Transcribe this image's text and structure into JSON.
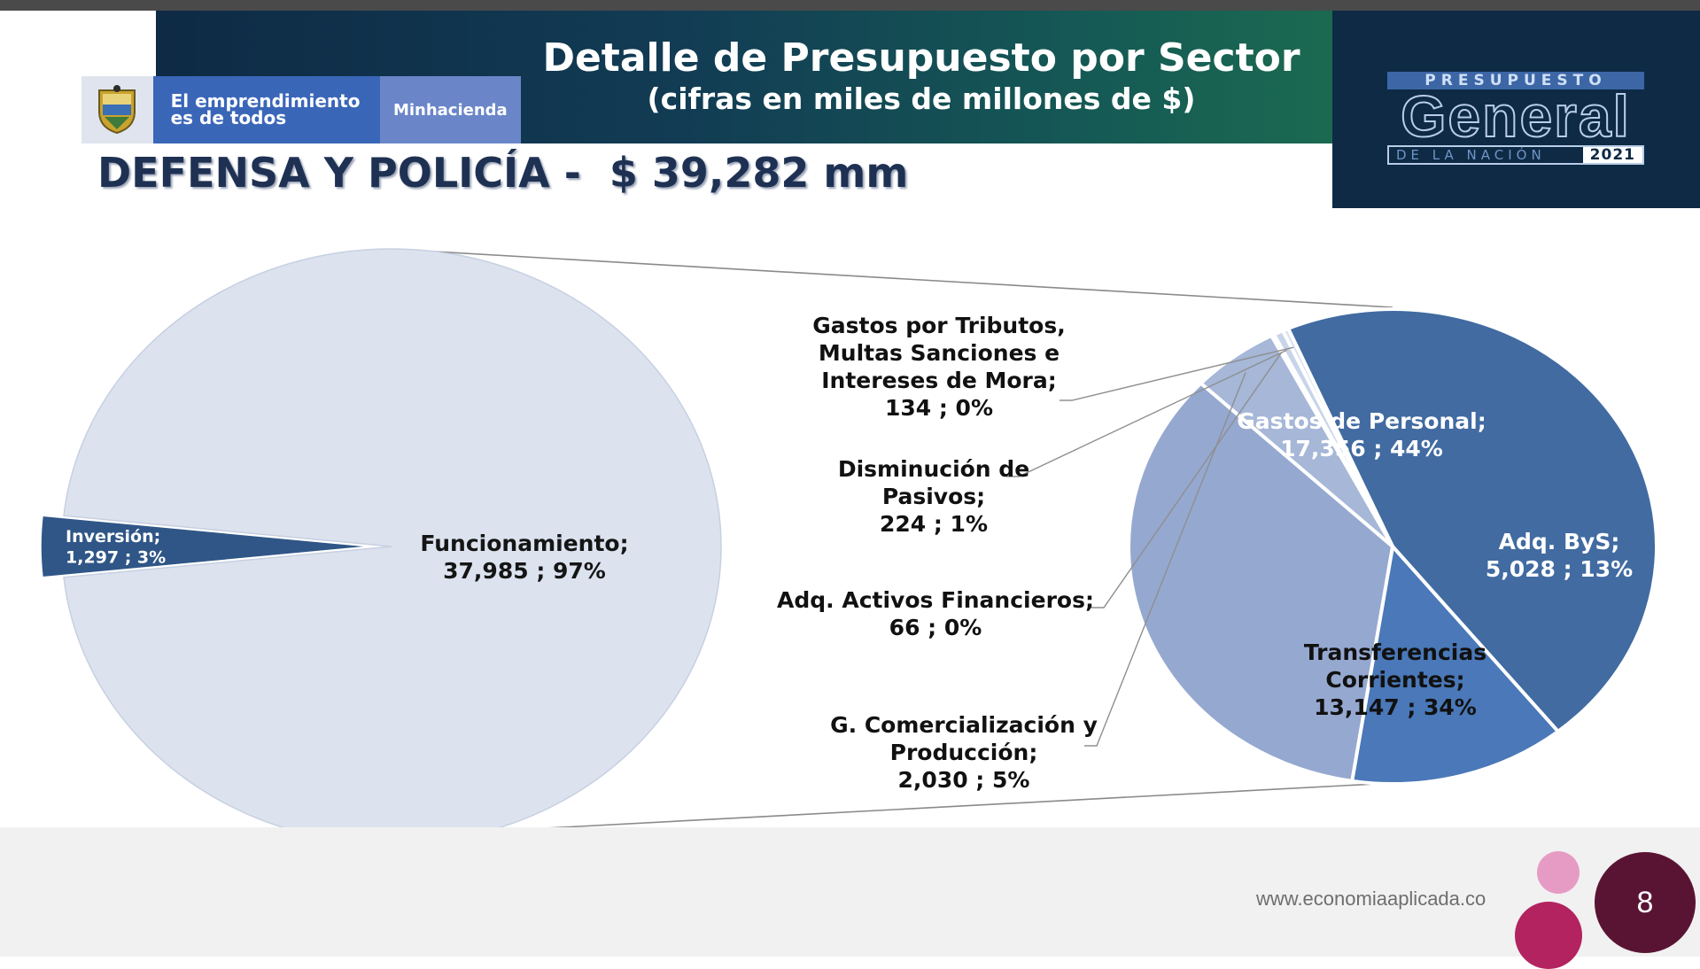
{
  "header": {
    "logo_line1": "El emprendimiento",
    "logo_line2": "es de todos",
    "logo_ministry": "Minhacienda",
    "title": "Detalle de Presupuesto por Sector",
    "subtitle": "(cifras en miles de millones de $)"
  },
  "badge": {
    "top": "PRESUPUESTO",
    "middle": "General",
    "bottom": "DE LA NACIÓN",
    "year": "2021"
  },
  "heading": "DEFENSA Y POLICÍA -  $ 39,282 mm",
  "chart_data": {
    "type": "pie",
    "subtype": "pie-of-pie",
    "main": {
      "slices": [
        {
          "label": "Funcionamiento;",
          "value": 37985,
          "value_label": "37,985 ; 97%",
          "color": "#dce3ef"
        },
        {
          "label": "Inversión;",
          "value": 1297,
          "value_label": "1,297 ; 3%",
          "color": "#2f5687"
        }
      ]
    },
    "secondary": {
      "slices": [
        {
          "label": "Gastos de Personal;",
          "value": 17356,
          "value_label": "17,356 ; 44%",
          "color": "#416ba1",
          "label_color": "#ffffff"
        },
        {
          "label": "Adq. ByS;",
          "value": 5028,
          "value_label": "5,028 ; 13%",
          "color": "#4a78b8",
          "label_color": "#ffffff"
        },
        {
          "label": "Transferencias Corrientes;",
          "value": 13147,
          "value_label": "13,147 ; 34%",
          "color": "#95a8d0",
          "label_color": "#111111"
        },
        {
          "label": "G. Comercialización y Producción;",
          "value": 2030,
          "value_label": "2,030 ; 5%",
          "color": "#a6b7d8",
          "label_color": "#111111"
        },
        {
          "label": "Adq. Activos Financieros;",
          "value": 66,
          "value_label": "66 ; 0%",
          "color": "#b7c5e0",
          "label_color": "#111111"
        },
        {
          "label": "Disminución de Pasivos;",
          "value": 224,
          "value_label": "224 ; 1%",
          "color": "#c8d4e9",
          "label_color": "#111111"
        },
        {
          "label": "Gastos por Tributos, Multas Sanciones e Intereses de Mora;",
          "value": 134,
          "value_label": "134 ; 0%",
          "color": "#d8e1f1",
          "label_color": "#111111"
        }
      ]
    }
  },
  "footer": {
    "website": "www.economiaaplicada.co",
    "page_number": "8"
  }
}
